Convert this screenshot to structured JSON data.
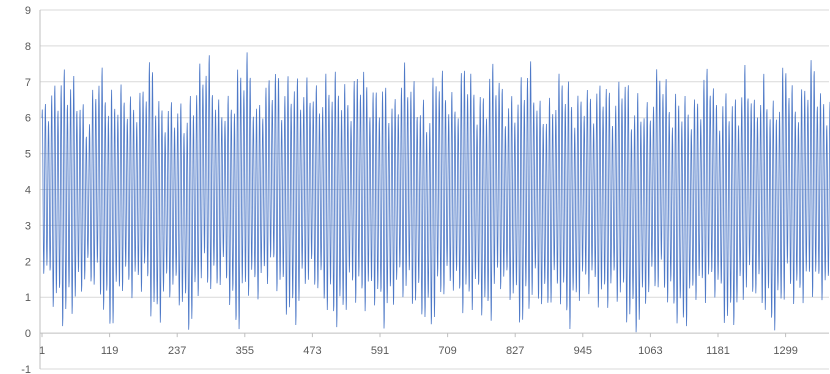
{
  "chart_data": {
    "type": "line",
    "title": "",
    "xlabel": "",
    "ylabel": "",
    "ylim": [
      -1,
      9
    ],
    "xlim": [
      1,
      1400
    ],
    "grid": true,
    "legend": "none",
    "y_ticks": [
      "-1",
      "0",
      "1",
      "2",
      "3",
      "4",
      "5",
      "6",
      "7",
      "8",
      "9"
    ],
    "x_ticks": [
      "1",
      "119",
      "237",
      "355",
      "473",
      "591",
      "709",
      "827",
      "945",
      "1063",
      "1181",
      "1299"
    ],
    "series": [
      {
        "color": "#4472c4",
        "center": 3.9,
        "oscillation_period_points": 5.5,
        "envelope_upper": [
          [
            1,
            6.4
          ],
          [
            20,
            7.0
          ],
          [
            40,
            7.5
          ],
          [
            60,
            7.2
          ],
          [
            80,
            6.0
          ],
          [
            100,
            7.7
          ],
          [
            120,
            6.8
          ],
          [
            140,
            7.0
          ],
          [
            160,
            6.6
          ],
          [
            175,
            6.9
          ],
          [
            190,
            7.9
          ],
          [
            210,
            6.4
          ],
          [
            230,
            6.6
          ],
          [
            255,
            6.4
          ],
          [
            275,
            7.5
          ],
          [
            290,
            8.0
          ],
          [
            310,
            6.5
          ],
          [
            330,
            6.7
          ],
          [
            345,
            7.6
          ],
          [
            360,
            8.0
          ],
          [
            375,
            6.4
          ],
          [
            395,
            7.2
          ],
          [
            410,
            7.6
          ],
          [
            420,
            6.8
          ],
          [
            435,
            7.5
          ],
          [
            450,
            7.1
          ],
          [
            470,
            7.2
          ],
          [
            485,
            6.8
          ],
          [
            500,
            7.4
          ],
          [
            520,
            7.3
          ],
          [
            540,
            6.7
          ],
          [
            555,
            7.8
          ],
          [
            575,
            6.9
          ],
          [
            600,
            7.1
          ],
          [
            615,
            6.5
          ],
          [
            635,
            7.7
          ],
          [
            655,
            6.9
          ],
          [
            675,
            6.3
          ],
          [
            690,
            7.8
          ],
          [
            710,
            6.9
          ],
          [
            725,
            6.6
          ],
          [
            740,
            8.0
          ],
          [
            760,
            6.7
          ],
          [
            775,
            6.9
          ],
          [
            790,
            7.9
          ],
          [
            810,
            6.6
          ],
          [
            830,
            6.8
          ],
          [
            850,
            7.9
          ],
          [
            870,
            6.5
          ],
          [
            890,
            6.6
          ],
          [
            910,
            7.6
          ],
          [
            930,
            6.6
          ],
          [
            950,
            7.0
          ],
          [
            965,
            6.7
          ],
          [
            980,
            7.4
          ],
          [
            1000,
            6.5
          ],
          [
            1015,
            7.7
          ],
          [
            1030,
            6.6
          ],
          [
            1045,
            6.8
          ],
          [
            1060,
            6.4
          ],
          [
            1080,
            7.8
          ],
          [
            1100,
            6.5
          ],
          [
            1115,
            7.0
          ],
          [
            1130,
            6.5
          ],
          [
            1150,
            6.8
          ],
          [
            1165,
            7.9
          ],
          [
            1180,
            6.4
          ],
          [
            1200,
            7.0
          ],
          [
            1215,
            6.5
          ],
          [
            1230,
            7.7
          ],
          [
            1245,
            6.5
          ],
          [
            1260,
            7.3
          ],
          [
            1280,
            6.4
          ],
          [
            1300,
            7.9
          ],
          [
            1315,
            6.6
          ],
          [
            1330,
            7.0
          ],
          [
            1345,
            7.9
          ],
          [
            1365,
            6.6
          ],
          [
            1380,
            6.8
          ],
          [
            1400,
            7.0
          ]
        ],
        "envelope_lower": [
          [
            1,
            1.8
          ],
          [
            20,
            0.7
          ],
          [
            40,
            0.0
          ],
          [
            60,
            0.6
          ],
          [
            80,
            1.4
          ],
          [
            100,
            0.9
          ],
          [
            120,
            -0.2
          ],
          [
            140,
            1.1
          ],
          [
            160,
            0.9
          ],
          [
            180,
            1.2
          ],
          [
            200,
            -0.2
          ],
          [
            220,
            1.0
          ],
          [
            240,
            0.7
          ],
          [
            260,
            -0.2
          ],
          [
            280,
            1.3
          ],
          [
            300,
            0.9
          ],
          [
            320,
            1.4
          ],
          [
            340,
            -0.3
          ],
          [
            360,
            1.0
          ],
          [
            380,
            0.9
          ],
          [
            400,
            1.5
          ],
          [
            420,
            0.8
          ],
          [
            440,
            -0.2
          ],
          [
            460,
            1.2
          ],
          [
            480,
            1.1
          ],
          [
            500,
            0.4
          ],
          [
            520,
            -0.1
          ],
          [
            540,
            1.0
          ],
          [
            560,
            0.5
          ],
          [
            580,
            0.8
          ],
          [
            600,
            0.0
          ],
          [
            620,
            1.0
          ],
          [
            640,
            0.8
          ],
          [
            660,
            0.4
          ],
          [
            680,
            -0.1
          ],
          [
            700,
            0.9
          ],
          [
            720,
            1.1
          ],
          [
            740,
            0.3
          ],
          [
            760,
            0.8
          ],
          [
            780,
            0.0
          ],
          [
            800,
            1.2
          ],
          [
            820,
            0.8
          ],
          [
            840,
            -0.1
          ],
          [
            860,
            0.9
          ],
          [
            880,
            0.4
          ],
          [
            900,
            1.0
          ],
          [
            920,
            -0.1
          ],
          [
            940,
            0.9
          ],
          [
            960,
            1.1
          ],
          [
            980,
            0.4
          ],
          [
            1000,
            1.0
          ],
          [
            1020,
            0.2
          ],
          [
            1040,
            -0.2
          ],
          [
            1060,
            0.9
          ],
          [
            1080,
            1.1
          ],
          [
            1100,
            0.5
          ],
          [
            1120,
            -0.2
          ],
          [
            1140,
            0.9
          ],
          [
            1160,
            0.8
          ],
          [
            1180,
            1.0
          ],
          [
            1200,
            -0.3
          ],
          [
            1220,
            0.7
          ],
          [
            1240,
            1.0
          ],
          [
            1260,
            0.5
          ],
          [
            1280,
            -0.1
          ],
          [
            1300,
            1.0
          ],
          [
            1320,
            0.6
          ],
          [
            1340,
            1.0
          ],
          [
            1360,
            0.9
          ],
          [
            1380,
            0.8
          ],
          [
            1400,
            1.0
          ]
        ]
      }
    ]
  }
}
